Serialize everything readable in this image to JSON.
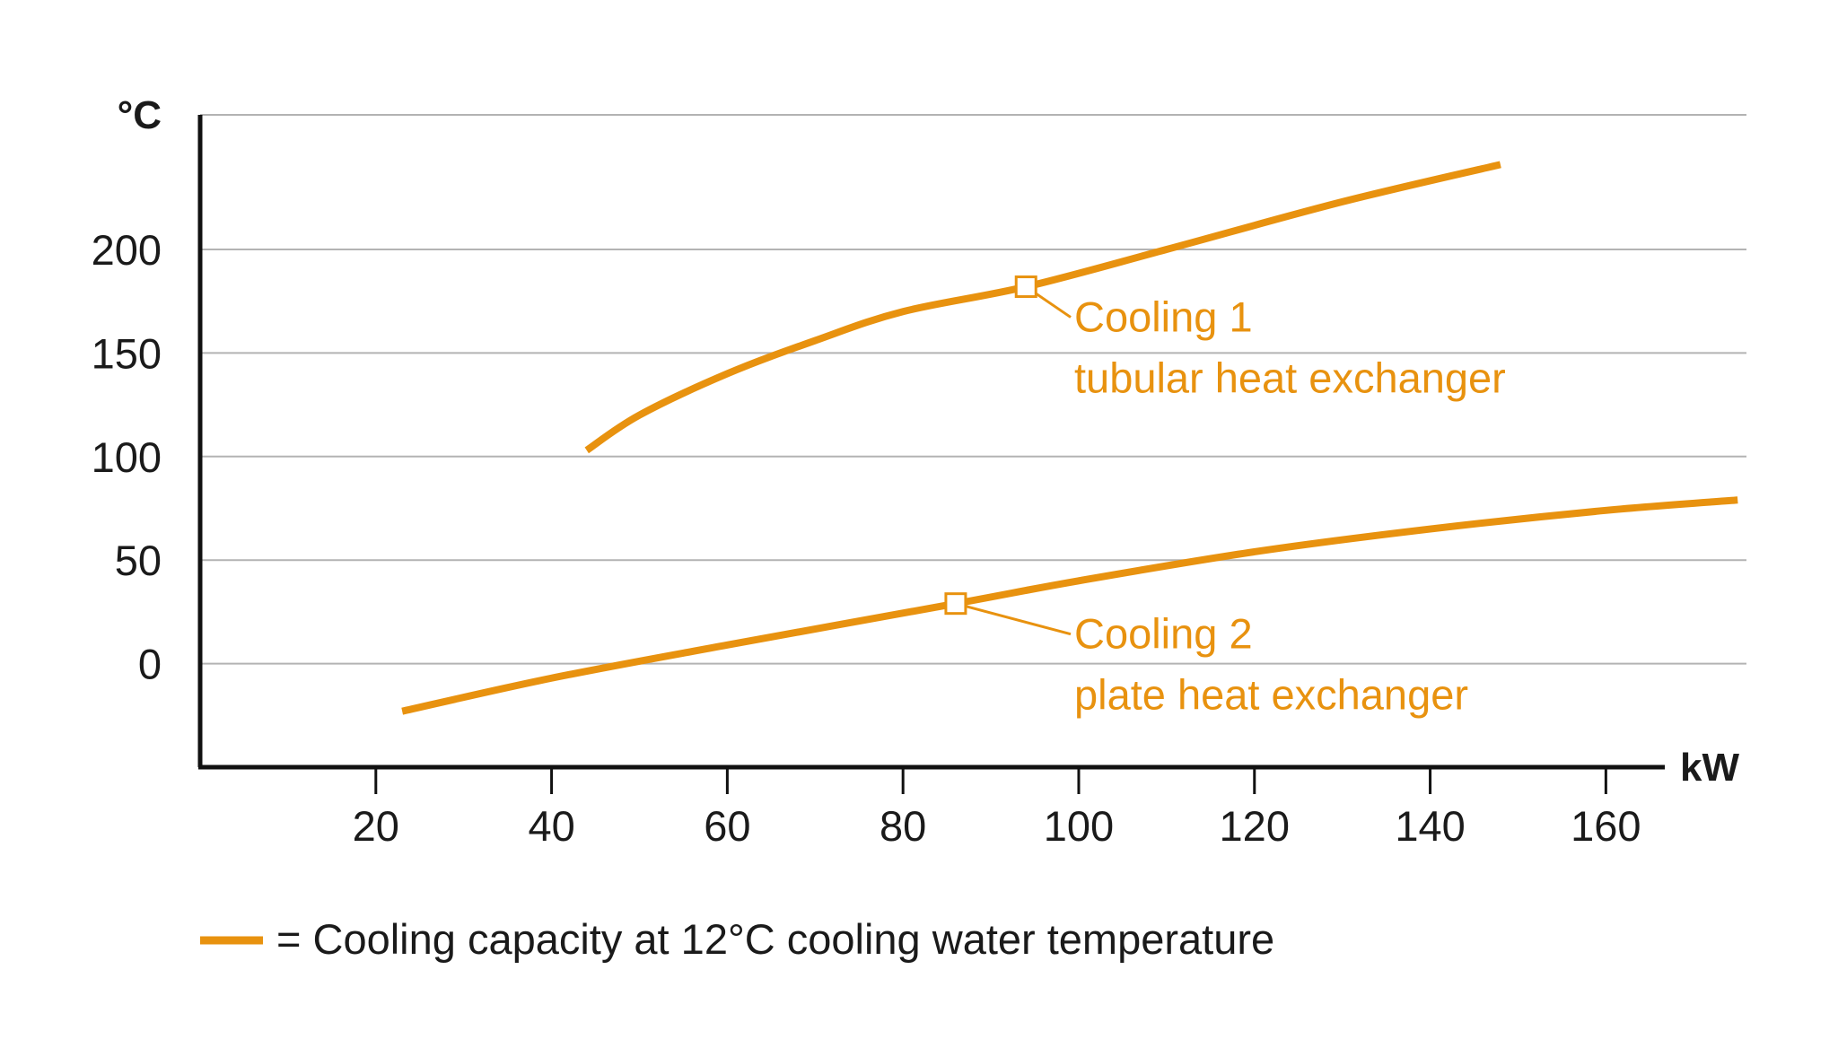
{
  "chart_data": {
    "type": "line",
    "title": "",
    "xlabel": "kW",
    "ylabel": "°C",
    "xlim": [
      0,
      176
    ],
    "ylim": [
      -50,
      265
    ],
    "x_ticks": [
      20,
      40,
      60,
      80,
      100,
      120,
      140,
      160
    ],
    "y_ticks": [
      0,
      50,
      100,
      150,
      200
    ],
    "grid_y_lines": [
      0,
      50,
      100,
      150,
      200,
      265
    ],
    "grid": true,
    "colors": {
      "series": "#E8920F",
      "grid": "#b3b3b3",
      "axis": "#111111"
    },
    "series": [
      {
        "name": "",
        "points": [
          [
            44,
            103
          ],
          [
            50,
            120
          ],
          [
            60,
            140
          ],
          [
            70,
            156
          ],
          [
            80,
            170
          ],
          [
            94,
            182
          ],
          [
            110,
            200
          ],
          [
            130,
            223
          ],
          [
            148,
            241
          ]
        ],
        "marker": [
          94,
          182
        ]
      },
      {
        "name": "",
        "points": [
          [
            23,
            -23
          ],
          [
            40,
            -7
          ],
          [
            60,
            9
          ],
          [
            86,
            29
          ],
          [
            100,
            40
          ],
          [
            120,
            54
          ],
          [
            140,
            65
          ],
          [
            160,
            74
          ],
          [
            175,
            79
          ]
        ],
        "marker": [
          86,
          29
        ]
      }
    ],
    "annotations": [
      {
        "series_index": 0,
        "lines": [
          "Cooling 1",
          "tubular heat exchanger"
        ]
      },
      {
        "series_index": 1,
        "lines": [
          "Cooling 2",
          "plate heat exchanger"
        ]
      }
    ],
    "legend": {
      "placement": "bottom-left",
      "text": "= Cooling capacity at 12°C cooling water temperature"
    }
  }
}
